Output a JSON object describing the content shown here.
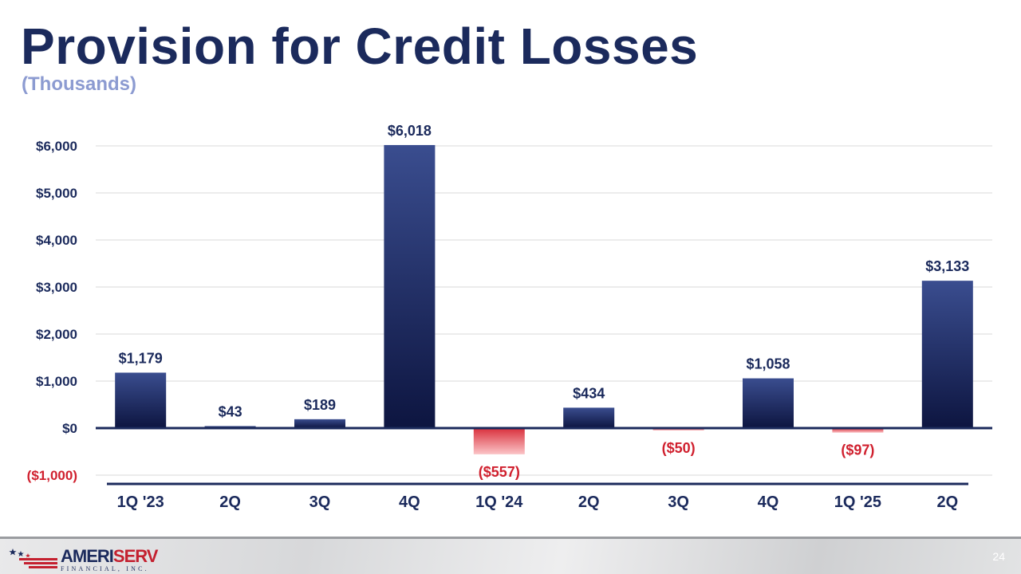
{
  "slide": {
    "title": "Provision for Credit Losses",
    "subtitle": "(Thousands)",
    "page_number": "24"
  },
  "logo": {
    "name_main": "AMERI",
    "name_accent": "SERV",
    "tagline": "FINANCIAL, INC."
  },
  "colors": {
    "title": "#1b2a5c",
    "subtitle": "#8c9bd1",
    "bar_top": "#3a4d8f",
    "bar_bottom": "#0d1540",
    "neg_top": "#d9303c",
    "neg_bottom": "#fbc4c7",
    "neg_label": "#d0202e",
    "label": "#1b2a5c"
  },
  "chart_data": {
    "type": "bar",
    "title": "Provision for Credit Losses",
    "subtitle": "(Thousands)",
    "categories": [
      "1Q '23",
      "2Q",
      "3Q",
      "4Q",
      "1Q '24",
      "2Q",
      "3Q",
      "4Q",
      "1Q '25",
      "2Q"
    ],
    "values": [
      1179,
      43,
      189,
      6018,
      -557,
      434,
      -50,
      1058,
      -97,
      3133
    ],
    "value_labels": [
      "$1,179",
      "$43",
      "$189",
      "$6,018",
      "($557)",
      "$434",
      "($50)",
      "$1,058",
      "($97)",
      "$3,133"
    ],
    "yticks": [
      -1000,
      0,
      1000,
      2000,
      3000,
      4000,
      5000,
      6000
    ],
    "ytick_labels": [
      "($1,000)",
      "$0",
      "$1,000",
      "$2,000",
      "$3,000",
      "$4,000",
      "$5,000",
      "$6,000"
    ],
    "ylim": [
      -1000,
      6000
    ],
    "grid": true,
    "xlabel": "",
    "ylabel": ""
  }
}
